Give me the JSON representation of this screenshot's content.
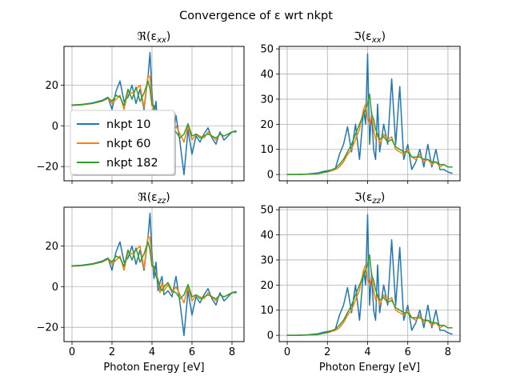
{
  "figure_title": "Convergence of ε wrt nkpt",
  "xlabel": "Photon Energy [eV]",
  "colors": {
    "nkpt 10": "#1f77b4",
    "nkpt 60": "#ff7f0e",
    "nkpt 182": "#2ca02c"
  },
  "legend": {
    "location": "center-left of top-left panel",
    "entries": [
      "nkpt 10",
      "nkpt 60",
      "nkpt 182"
    ]
  },
  "chart_data": [
    {
      "type": "line",
      "title": "ℜ(εxx)",
      "xlabel": "",
      "ylabel": "",
      "xlim": [
        -0.4,
        8.6
      ],
      "ylim": [
        -27,
        39
      ],
      "xticks": [
        0,
        2,
        4,
        6,
        8
      ],
      "yticks": [
        -20,
        0,
        20
      ],
      "grid": true,
      "show_xtick_labels": false,
      "x": [
        0,
        0.5,
        1,
        1.5,
        1.8,
        2.0,
        2.2,
        2.4,
        2.6,
        2.8,
        3.0,
        3.2,
        3.4,
        3.6,
        3.8,
        3.9,
        4.0,
        4.1,
        4.2,
        4.3,
        4.4,
        4.5,
        4.6,
        4.8,
        5.0,
        5.2,
        5.4,
        5.6,
        5.8,
        6.0,
        6.2,
        6.4,
        6.6,
        6.8,
        7.0,
        7.2,
        7.4,
        7.6,
        7.8,
        8.0,
        8.2
      ],
      "series": [
        {
          "name": "nkpt 10",
          "values": [
            10.2,
            10.5,
            11.2,
            12.5,
            14,
            8,
            17,
            22,
            12,
            14,
            20,
            11,
            18,
            8,
            24,
            36,
            16,
            4,
            12,
            -2,
            2,
            5,
            -4,
            -2,
            -5,
            5,
            -8,
            -24,
            -2,
            -14,
            -5,
            -8,
            -4,
            -1,
            -6,
            -9,
            -3,
            -7,
            -5,
            -3,
            -3
          ]
        },
        {
          "name": "nkpt 60",
          "values": [
            10,
            10.3,
            10.9,
            12,
            13.5,
            11,
            13,
            15,
            8,
            17,
            16,
            18,
            20,
            9,
            25,
            24,
            12,
            8,
            6,
            4,
            -3,
            2,
            -2,
            1,
            -3,
            0,
            -4,
            -8,
            0,
            -7,
            -4,
            -5,
            -6,
            -3,
            -5,
            -7,
            -4,
            -5,
            -4,
            -3,
            -2.5
          ]
        },
        {
          "name": "nkpt 182",
          "values": [
            10.1,
            10.4,
            11,
            12.2,
            13.8,
            12,
            15,
            14,
            10,
            18,
            13,
            19,
            12,
            16,
            22,
            18,
            10,
            10,
            5,
            3,
            0,
            -2,
            0,
            2,
            -2,
            -3,
            -6,
            -4,
            1,
            -5,
            -4,
            -6,
            -5,
            -4,
            -5,
            -6,
            -4,
            -5,
            -4,
            -3,
            -2.5
          ]
        }
      ]
    },
    {
      "type": "line",
      "title": "ℑ(εxx)",
      "xlabel": "",
      "ylabel": "",
      "xlim": [
        -0.4,
        8.6
      ],
      "ylim": [
        -2.5,
        51
      ],
      "xticks": [
        0,
        2,
        4,
        6,
        8
      ],
      "yticks": [
        0,
        10,
        20,
        30,
        40,
        50
      ],
      "grid": true,
      "show_xtick_labels": false,
      "x": [
        0,
        0.5,
        1,
        1.5,
        1.8,
        2.0,
        2.2,
        2.4,
        2.6,
        2.8,
        3.0,
        3.2,
        3.4,
        3.6,
        3.8,
        3.9,
        4.0,
        4.1,
        4.2,
        4.3,
        4.4,
        4.5,
        4.6,
        4.8,
        5.0,
        5.2,
        5.4,
        5.6,
        5.8,
        6.0,
        6.2,
        6.4,
        6.6,
        6.8,
        7.0,
        7.2,
        7.4,
        7.6,
        7.8,
        8.0,
        8.2
      ],
      "series": [
        {
          "name": "nkpt 10",
          "values": [
            0,
            0,
            0.2,
            0.6,
            1.2,
            1.5,
            1.8,
            2.5,
            8,
            12,
            19,
            9,
            20,
            6,
            26,
            20,
            48,
            12,
            25,
            10,
            6,
            28,
            9,
            20,
            12,
            38,
            12,
            35,
            6,
            12,
            2,
            5,
            10,
            3,
            12,
            3,
            10,
            2,
            2,
            1,
            0.5
          ]
        },
        {
          "name": "nkpt 60",
          "values": [
            0,
            0,
            0.1,
            0.3,
            0.8,
            1,
            1.5,
            2,
            3,
            5,
            8,
            10,
            14,
            18,
            26,
            28,
            22,
            20,
            24,
            18,
            14,
            16,
            12,
            16,
            14,
            15,
            10,
            9,
            8,
            10,
            7,
            6,
            8,
            5,
            6,
            4,
            5,
            3,
            4,
            3,
            3
          ]
        },
        {
          "name": "nkpt 182",
          "values": [
            0,
            0,
            0.1,
            0.3,
            0.8,
            1.2,
            1.8,
            2.5,
            4,
            6,
            9,
            12,
            16,
            20,
            24,
            26,
            28,
            32,
            24,
            22,
            18,
            16,
            14,
            15,
            13,
            14,
            11,
            10,
            9,
            9,
            7,
            7,
            7,
            6,
            6,
            5,
            5,
            4,
            4,
            3,
            3
          ]
        }
      ]
    },
    {
      "type": "line",
      "title": "ℜ(εzz)",
      "xlabel": "Photon Energy [eV]",
      "ylabel": "",
      "xlim": [
        -0.4,
        8.6
      ],
      "ylim": [
        -27,
        39
      ],
      "xticks": [
        0,
        2,
        4,
        6,
        8
      ],
      "yticks": [
        -20,
        0,
        20
      ],
      "grid": true,
      "show_xtick_labels": true,
      "x": [
        0,
        0.5,
        1,
        1.5,
        1.8,
        2.0,
        2.2,
        2.4,
        2.6,
        2.8,
        3.0,
        3.2,
        3.4,
        3.6,
        3.8,
        3.9,
        4.0,
        4.1,
        4.2,
        4.3,
        4.4,
        4.5,
        4.6,
        4.8,
        5.0,
        5.2,
        5.4,
        5.6,
        5.8,
        6.0,
        6.2,
        6.4,
        6.6,
        6.8,
        7.0,
        7.2,
        7.4,
        7.6,
        7.8,
        8.0,
        8.2
      ],
      "series": [
        {
          "name": "nkpt 10",
          "values": [
            10.2,
            10.5,
            11.2,
            12.5,
            14,
            8,
            17,
            22,
            12,
            14,
            20,
            11,
            18,
            8,
            24,
            36,
            16,
            4,
            12,
            -2,
            2,
            5,
            -4,
            -2,
            -5,
            5,
            -8,
            -24,
            -2,
            -14,
            -5,
            -8,
            -4,
            -1,
            -6,
            -9,
            -3,
            -7,
            -5,
            -3,
            -3
          ]
        },
        {
          "name": "nkpt 60",
          "values": [
            10,
            10.3,
            10.9,
            12,
            13.5,
            11,
            13,
            15,
            8,
            17,
            16,
            18,
            20,
            9,
            25,
            24,
            12,
            8,
            6,
            4,
            -3,
            2,
            -2,
            1,
            -3,
            0,
            -4,
            -8,
            0,
            -7,
            -4,
            -5,
            -6,
            -3,
            -5,
            -7,
            -4,
            -5,
            -4,
            -3,
            -2.5
          ]
        },
        {
          "name": "nkpt 182",
          "values": [
            10.1,
            10.4,
            11,
            12.2,
            13.8,
            12,
            15,
            14,
            10,
            18,
            13,
            19,
            12,
            16,
            22,
            18,
            10,
            10,
            5,
            3,
            0,
            -2,
            0,
            2,
            -2,
            -3,
            -6,
            -4,
            1,
            -5,
            -4,
            -6,
            -5,
            -4,
            -5,
            -6,
            -4,
            -5,
            -4,
            -3,
            -2.5
          ]
        }
      ]
    },
    {
      "type": "line",
      "title": "ℑ(εzz)",
      "xlabel": "Photon Energy [eV]",
      "ylabel": "",
      "xlim": [
        -0.4,
        8.6
      ],
      "ylim": [
        -2.5,
        51
      ],
      "xticks": [
        0,
        2,
        4,
        6,
        8
      ],
      "yticks": [
        0,
        10,
        20,
        30,
        40,
        50
      ],
      "grid": true,
      "show_xtick_labels": true,
      "x": [
        0,
        0.5,
        1,
        1.5,
        1.8,
        2.0,
        2.2,
        2.4,
        2.6,
        2.8,
        3.0,
        3.2,
        3.4,
        3.6,
        3.8,
        3.9,
        4.0,
        4.1,
        4.2,
        4.3,
        4.4,
        4.5,
        4.6,
        4.8,
        5.0,
        5.2,
        5.4,
        5.6,
        5.8,
        6.0,
        6.2,
        6.4,
        6.6,
        6.8,
        7.0,
        7.2,
        7.4,
        7.6,
        7.8,
        8.0,
        8.2
      ],
      "series": [
        {
          "name": "nkpt 10",
          "values": [
            0,
            0,
            0.2,
            0.6,
            1.2,
            1.5,
            1.8,
            2.5,
            8,
            12,
            19,
            9,
            20,
            6,
            26,
            20,
            48,
            12,
            25,
            10,
            6,
            28,
            9,
            20,
            12,
            38,
            12,
            35,
            6,
            12,
            2,
            5,
            10,
            3,
            12,
            3,
            10,
            2,
            2,
            1,
            0.5
          ]
        },
        {
          "name": "nkpt 60",
          "values": [
            0,
            0,
            0.1,
            0.3,
            0.8,
            1,
            1.5,
            2,
            3,
            5,
            8,
            10,
            14,
            18,
            26,
            28,
            22,
            20,
            24,
            18,
            14,
            16,
            12,
            16,
            14,
            15,
            10,
            9,
            8,
            10,
            7,
            6,
            8,
            5,
            6,
            4,
            5,
            3,
            4,
            3,
            3
          ]
        },
        {
          "name": "nkpt 182",
          "values": [
            0,
            0,
            0.1,
            0.3,
            0.8,
            1.2,
            1.8,
            2.5,
            4,
            6,
            9,
            12,
            16,
            20,
            24,
            26,
            28,
            32,
            24,
            22,
            18,
            16,
            14,
            15,
            13,
            14,
            11,
            10,
            9,
            9,
            7,
            7,
            7,
            6,
            6,
            5,
            5,
            4,
            4,
            3,
            3
          ]
        }
      ]
    }
  ]
}
